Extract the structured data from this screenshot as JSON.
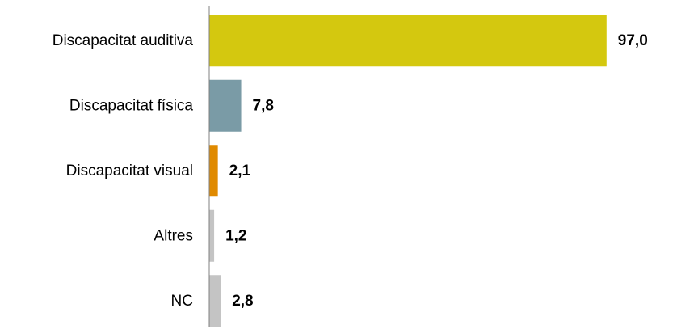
{
  "chart_data": {
    "type": "bar",
    "orientation": "horizontal",
    "categories": [
      "Discapacitat auditiva",
      "Discapacitat física",
      "Discapacitat visual",
      "Altres",
      "NC"
    ],
    "values": [
      97.0,
      7.8,
      2.1,
      1.2,
      2.8
    ],
    "value_labels": [
      "97,0",
      "7,8",
      "2,1",
      "1,2",
      "2,8"
    ],
    "colors": [
      "#d4c80f",
      "#7a9ba6",
      "#e08a00",
      "#c4c4c4",
      "#c4c4c4"
    ],
    "xlim": [
      0,
      100
    ],
    "grid": false,
    "legend": "none"
  }
}
